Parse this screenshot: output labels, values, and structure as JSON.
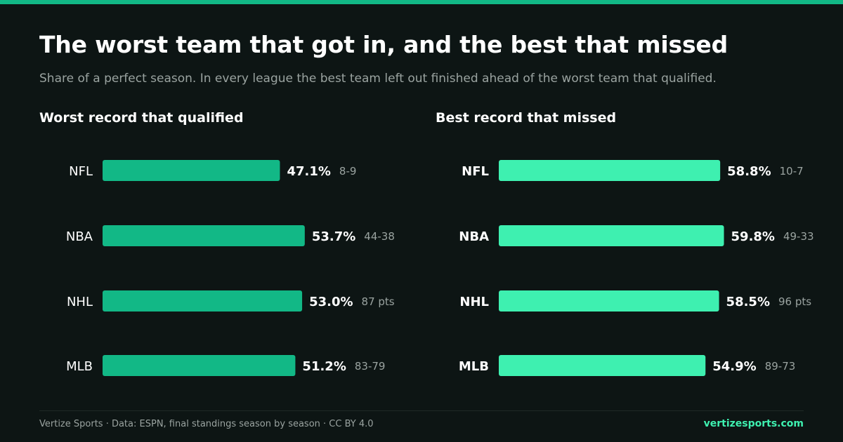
{
  "header": {
    "title": "The worst team that got in, and the best that missed",
    "subtitle": "Share of a perfect season. In every league the best team left out finished ahead of the worst team that qualified."
  },
  "colors": {
    "background": "#0d1514",
    "accent_qualified": "#12b886",
    "accent_missed": "#3ef0b0",
    "muted_text": "#9aa3a0"
  },
  "chart_data": [
    {
      "type": "bar",
      "orientation": "horizontal",
      "title": "Worst record that qualified",
      "categories": [
        "NFL",
        "NBA",
        "NHL",
        "MLB"
      ],
      "values": [
        47.1,
        53.7,
        53.0,
        51.2
      ],
      "value_labels": [
        "47.1%",
        "53.7%",
        "53.0%",
        "51.2%"
      ],
      "records": [
        "8-9",
        "44-38",
        "87 pts",
        "83-79"
      ],
      "xlim": [
        0,
        100
      ],
      "grid": false,
      "legend": "none"
    },
    {
      "type": "bar",
      "orientation": "horizontal",
      "title": "Best record that missed",
      "categories": [
        "NFL",
        "NBA",
        "NHL",
        "MLB"
      ],
      "values": [
        58.8,
        59.8,
        58.5,
        54.9
      ],
      "value_labels": [
        "58.8%",
        "59.8%",
        "58.5%",
        "54.9%"
      ],
      "records": [
        "10-7",
        "49-33",
        "96 pts",
        "89-73"
      ],
      "xlim": [
        0,
        100
      ],
      "grid": false,
      "legend": "none"
    }
  ],
  "footer": {
    "credit": "Vertize Sports · Data: ESPN, final standings season by season · CC BY 4.0",
    "site": "vertizesports.com"
  }
}
